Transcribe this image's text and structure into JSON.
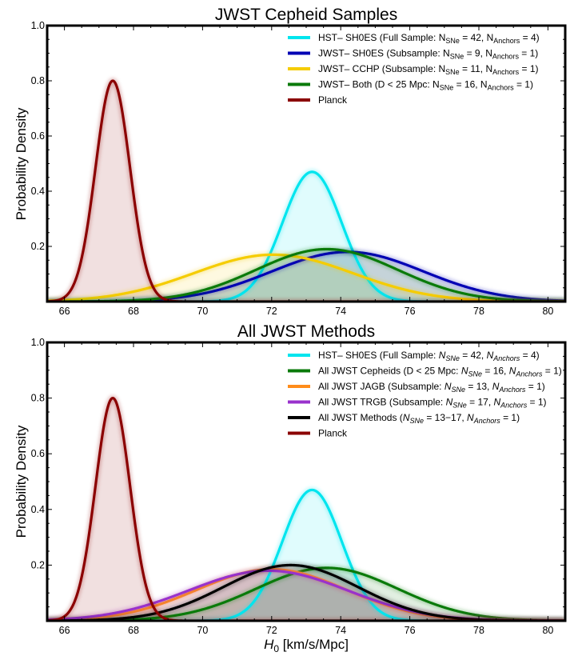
{
  "chart_data": [
    {
      "type": "line",
      "title": "JWST Cepheid Samples",
      "xlabel": "",
      "ylabel": "Probability Density",
      "xlim": [
        65.5,
        80.5
      ],
      "ylim": [
        0.0,
        1.0
      ],
      "xticks": [
        "66",
        "68",
        "70",
        "72",
        "74",
        "76",
        "78",
        "80"
      ],
      "xtick_values": [
        66,
        68,
        70,
        72,
        74,
        76,
        78,
        80
      ],
      "yticks": [
        "0.2",
        "0.4",
        "0.6",
        "0.8",
        "1.0"
      ],
      "ytick_values": [
        0.2,
        0.4,
        0.6,
        0.8,
        1.0
      ],
      "legend_position": "top-right",
      "filled": true,
      "series": [
        {
          "name": "HST– SH0ES",
          "legend": [
            "HST– SH0ES (Full Sample: N",
            "SNe",
            " = 42, N",
            "Anchors",
            " = 4)"
          ],
          "color": "#00e5ee",
          "mean": 73.17,
          "sigma": 0.86,
          "peak": 0.47
        },
        {
          "name": "JWST– SH0ES",
          "legend": [
            "JWST– SH0ES (Subsample: N",
            "SNe",
            " = 9, N",
            "Anchors",
            " = 1)"
          ],
          "color": "#0000b4",
          "mean": 74.2,
          "sigma": 2.2,
          "peak": 0.18
        },
        {
          "name": "JWST– CCHP",
          "legend": [
            "JWST– CCHP (Subsample: N",
            "SNe",
            " = 11, N",
            "Anchors",
            " = 1)"
          ],
          "color": "#f5cc00",
          "mean": 72.05,
          "sigma": 2.3,
          "peak": 0.17
        },
        {
          "name": "JWST– Both",
          "legend": [
            "JWST– Both (D < 25 Mpc: N",
            "SNe",
            " = 16, N",
            "Anchors",
            " = 1)"
          ],
          "color": "#0a7a0a",
          "mean": 73.6,
          "sigma": 2.05,
          "peak": 0.19
        },
        {
          "name": "Planck",
          "legend": [
            "Planck"
          ],
          "color": "#8b0000",
          "mean": 67.4,
          "sigma": 0.5,
          "peak": 0.8
        }
      ]
    },
    {
      "type": "line",
      "title": "All JWST Methods",
      "xlabel": "H0 [km/s/Mpc]",
      "xlabel_main": "H",
      "xlabel_sub": "0",
      "xlabel_rest": " [km/s/Mpc]",
      "ylabel": "Probability Density",
      "xlim": [
        65.5,
        80.5
      ],
      "ylim": [
        0.0,
        1.0
      ],
      "xticks": [
        "66",
        "68",
        "70",
        "72",
        "74",
        "76",
        "78",
        "80"
      ],
      "xtick_values": [
        66,
        68,
        70,
        72,
        74,
        76,
        78,
        80
      ],
      "yticks": [
        "0.2",
        "0.4",
        "0.6",
        "0.8",
        "1.0"
      ],
      "ytick_values": [
        0.2,
        0.4,
        0.6,
        0.8,
        1.0
      ],
      "legend_position": "top-right",
      "filled": true,
      "series": [
        {
          "name": "HST– SH0ES",
          "legend": [
            "HST– SH0ES (Full Sample: ",
            "N",
            "SNe",
            " = 42, ",
            "N",
            "Anchors",
            " = 4)"
          ],
          "color": "#00e5ee",
          "mean": 73.17,
          "sigma": 0.86,
          "peak": 0.47
        },
        {
          "name": "All JWST Cepheids",
          "legend": [
            "All JWST Cepheids (D < 25 Mpc: ",
            "N",
            "SNe",
            " = 16, ",
            "N",
            "Anchors",
            " = 1)"
          ],
          "color": "#0a7a0a",
          "mean": 73.6,
          "sigma": 2.05,
          "peak": 0.19
        },
        {
          "name": "All JWST JAGB",
          "legend": [
            "All JWST JAGB (Subsample: ",
            "N",
            "SNe",
            " = 13, ",
            "N",
            "Anchors",
            " = 1)"
          ],
          "color": "#ff8c1a",
          "mean": 72.0,
          "sigma": 2.15,
          "peak": 0.185
        },
        {
          "name": "All JWST TRGB",
          "legend": [
            "All JWST TRGB (Subsample: ",
            "N",
            "SNe",
            " = 17, ",
            "N",
            "Anchors",
            " = 1)"
          ],
          "color": "#9932cc",
          "mean": 71.9,
          "sigma": 2.3,
          "peak": 0.18
        },
        {
          "name": "All JWST Methods",
          "legend": [
            "All JWST Methods (",
            "N",
            "SNe",
            " = 13−17, ",
            "N",
            "Anchors",
            " = 1)"
          ],
          "color": "#000000",
          "mean": 72.55,
          "sigma": 1.95,
          "peak": 0.2
        },
        {
          "name": "Planck",
          "legend": [
            "Planck"
          ],
          "color": "#8b0000",
          "mean": 67.4,
          "sigma": 0.5,
          "peak": 0.8
        }
      ]
    }
  ]
}
